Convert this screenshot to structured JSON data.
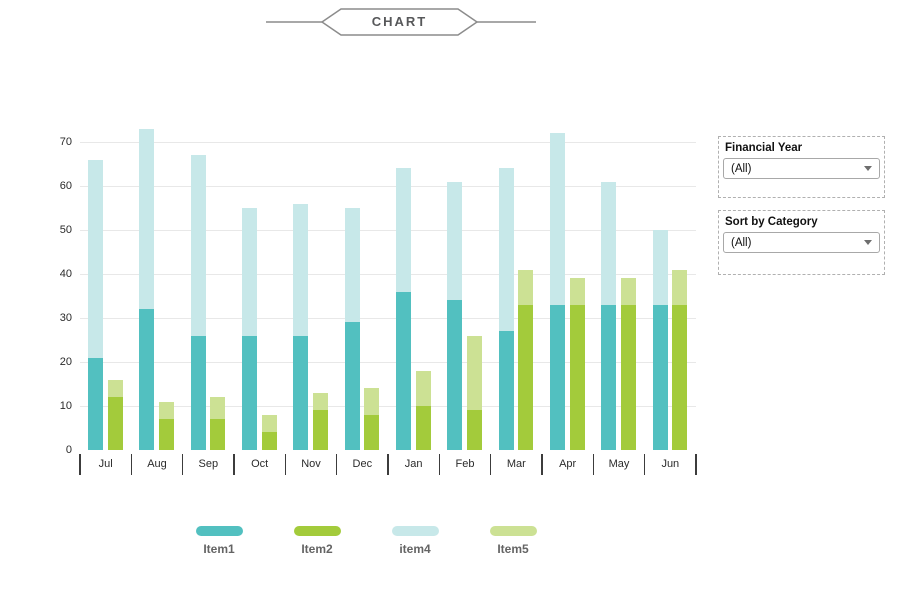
{
  "title": "CHART",
  "filters": [
    {
      "label": "Financial Year",
      "value": "(All)"
    },
    {
      "label": "Sort by Category",
      "value": "(All)"
    }
  ],
  "legend": [
    {
      "name": "Item1",
      "color": "#52c0c0"
    },
    {
      "name": "Item2",
      "color": "#a3cb3b"
    },
    {
      "name": "item4",
      "color": "#c7e8e9"
    },
    {
      "name": "Item5",
      "color": "#cce194"
    }
  ],
  "chart_data": {
    "type": "bar",
    "subtype": "grouped-stacked-columns",
    "title": "CHART",
    "xlabel": "",
    "ylabel": "",
    "categories": [
      "Jul",
      "Aug",
      "Sep",
      "Oct",
      "Nov",
      "Dec",
      "Jan",
      "Feb",
      "Mar",
      "Apr",
      "May",
      "Jun"
    ],
    "stacks": [
      "teal",
      "green"
    ],
    "series": [
      {
        "name": "Item1",
        "stack": "teal",
        "color": "#52c0c0",
        "values": [
          21,
          32,
          26,
          26,
          26,
          29,
          36,
          34,
          27,
          33,
          33,
          33
        ]
      },
      {
        "name": "item4",
        "stack": "teal",
        "color": "#c7e8e9",
        "values": [
          45,
          41,
          41,
          29,
          30,
          26,
          28,
          27,
          37,
          39,
          28,
          17
        ]
      },
      {
        "name": "Item2",
        "stack": "green",
        "color": "#a3cb3b",
        "values": [
          12,
          7,
          7,
          4,
          9,
          8,
          10,
          9,
          33,
          33,
          33,
          33
        ]
      },
      {
        "name": "Item5",
        "stack": "green",
        "color": "#cce194",
        "values": [
          4,
          4,
          5,
          4,
          4,
          6,
          8,
          17,
          8,
          6,
          6,
          8
        ]
      }
    ],
    "stack_totals": {
      "teal": [
        66,
        73,
        67,
        55,
        56,
        55,
        64,
        61,
        64,
        72,
        61,
        50
      ],
      "green": [
        16,
        11,
        12,
        8,
        13,
        14,
        18,
        26,
        41,
        39,
        39,
        41
      ]
    },
    "ylim": [
      0,
      70
    ],
    "yticks": [
      0,
      10,
      20,
      30,
      40,
      50,
      60,
      70
    ],
    "grid": "horizontal",
    "legend_position": "bottom"
  }
}
